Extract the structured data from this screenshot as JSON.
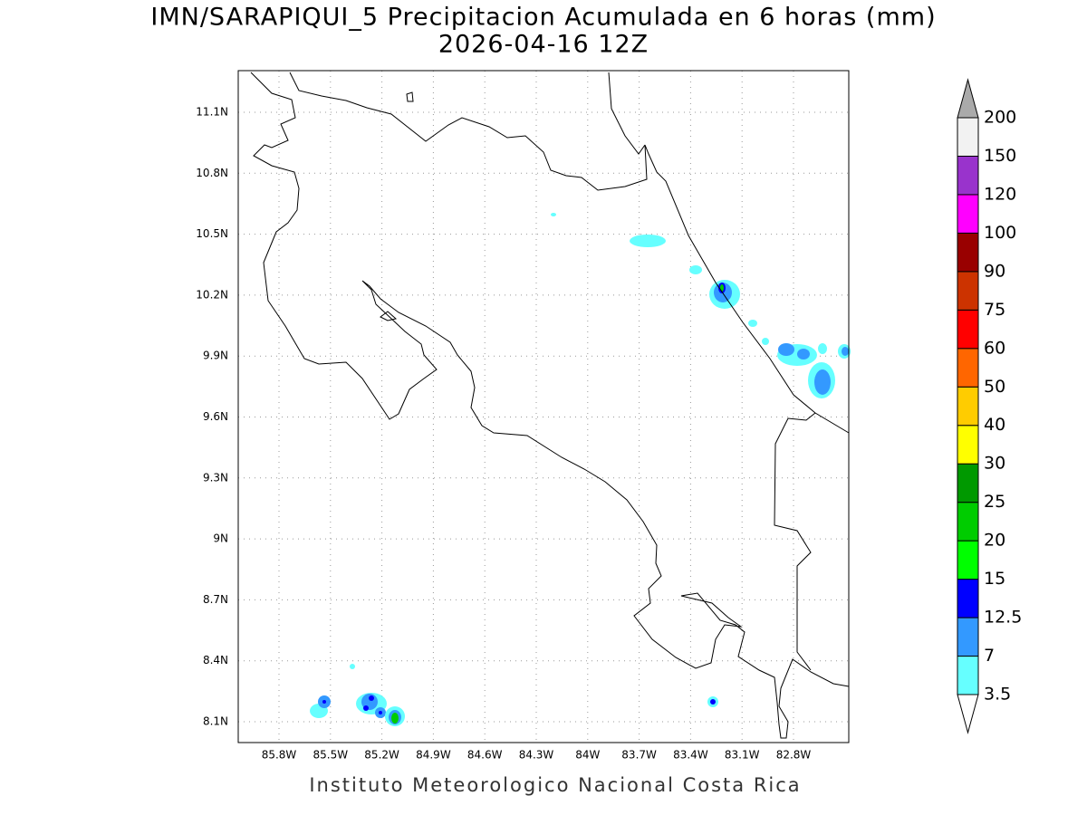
{
  "title": "IMN/SARAPIQUI_5 Precipitacion Acumulada en 6 horas (mm)",
  "subtitle": "2026-04-16 12Z",
  "map": {
    "xticks": [
      "85.8W",
      "85.5W",
      "85.2W",
      "84.9W",
      "84.6W",
      "84.3W",
      "84W",
      "83.7W",
      "83.4W",
      "83.1W",
      "82.8W"
    ],
    "yticks": [
      "8.1N",
      "8.4N",
      "8.7N",
      "9N",
      "9.3N",
      "9.6N",
      "9.9N",
      "10.2N",
      "10.5N",
      "10.8N",
      "11.1N"
    ]
  },
  "colorbar": {
    "levels": [
      3.5,
      7,
      12.5,
      15,
      20,
      25,
      30,
      40,
      50,
      60,
      75,
      90,
      100,
      120,
      150,
      200
    ],
    "colors": [
      "#66ffff",
      "#3399ff",
      "#0000ff",
      "#00ff00",
      "#00cc00",
      "#009900",
      "#ffff00",
      "#ffcc00",
      "#ff6600",
      "#ff0000",
      "#cc3300",
      "#990000",
      "#ff00ff",
      "#9933cc",
      "#f2f2f2"
    ],
    "below_color": "#ffffff",
    "above_color": "#aaaaaa"
  },
  "footer": "Instituto Meteorologico Nacional Costa Rica"
}
